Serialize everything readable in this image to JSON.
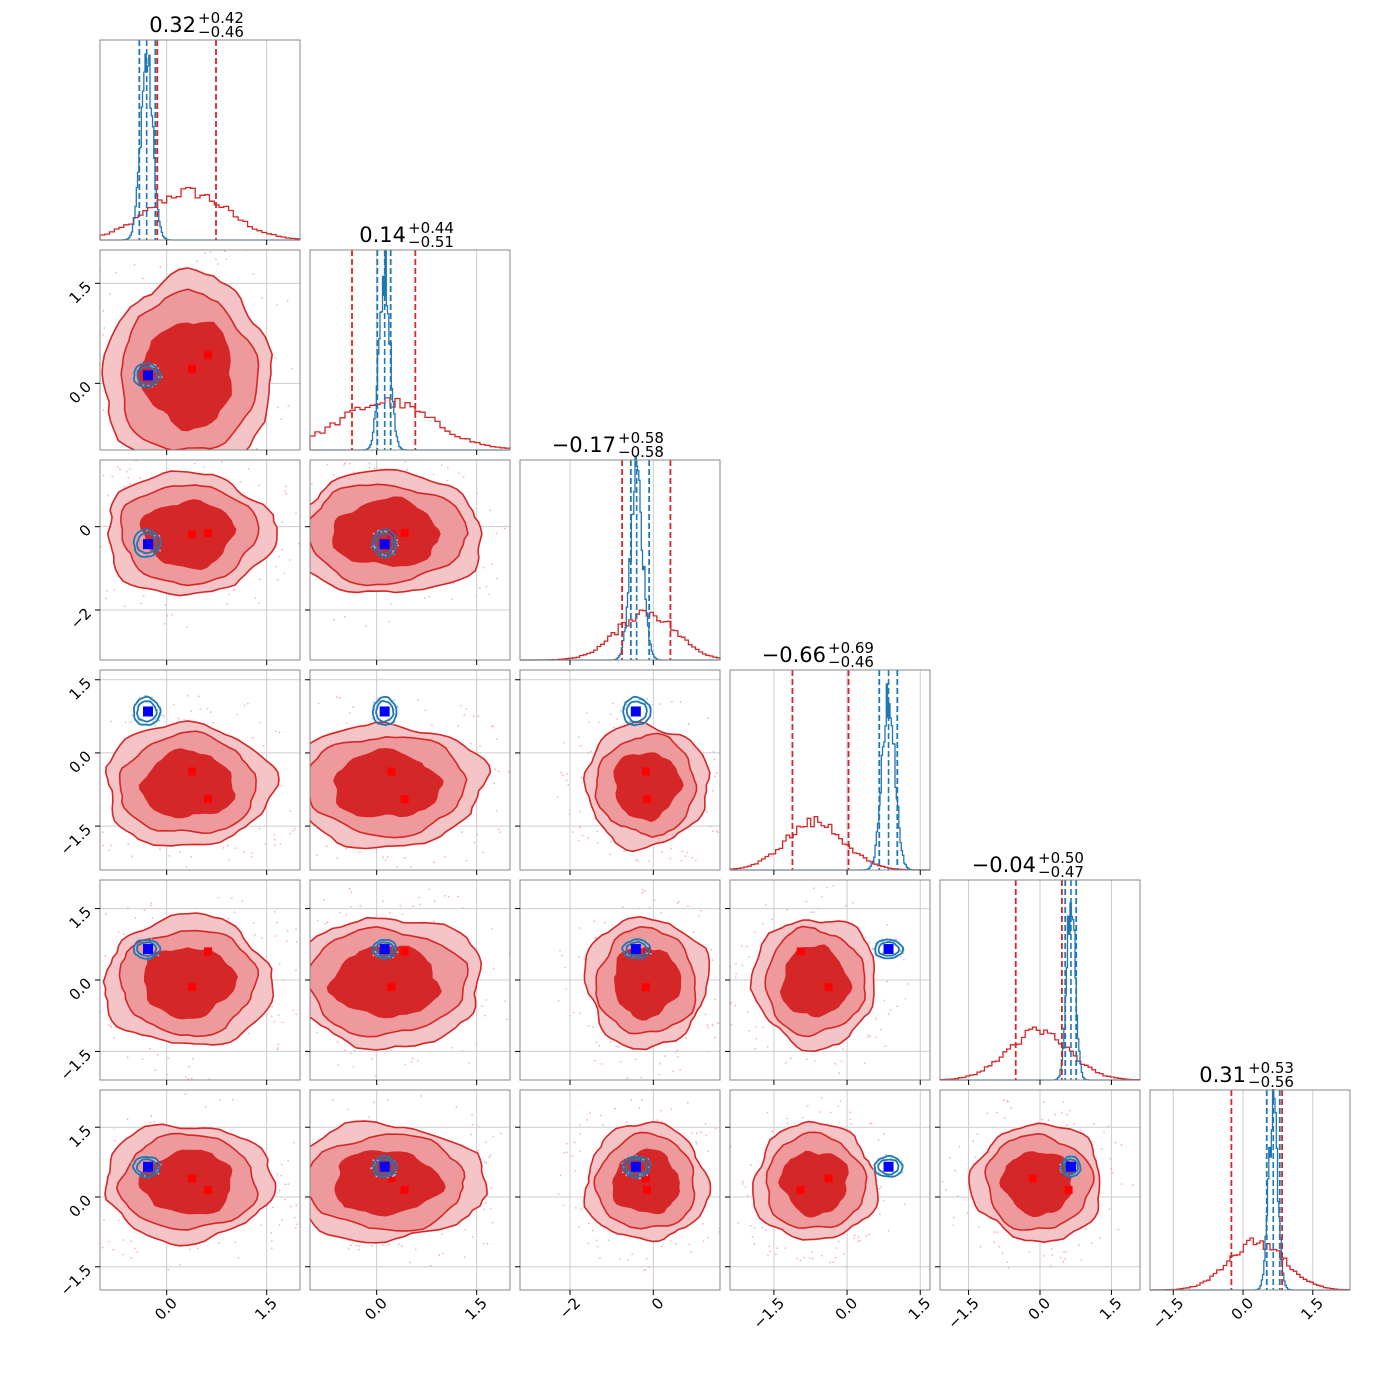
{
  "chart_data": {
    "type": "corner",
    "n_params": 6,
    "grid": true,
    "colors": {
      "red_series": "#d62728",
      "red_fill_light": "#f4c4c6",
      "red_fill_mid": "#ee9a9c",
      "red_scatter": "#f6b3c0",
      "blue_series": "#1f77b4",
      "blue_scatter": "#9ecae1",
      "truth_marker": "#0000ff",
      "red_marker": "#ff0000",
      "grid": "#cccccc",
      "frame": "#888888"
    },
    "axis_ranges": [
      [
        -1.0,
        2.0
      ],
      [
        -1.0,
        2.0
      ],
      [
        -3.2,
        1.6
      ],
      [
        -2.4,
        1.7
      ],
      [
        -2.1,
        2.1
      ],
      [
        -2.0,
        2.3
      ]
    ],
    "ticks": [
      {
        "values": [
          0.0,
          1.5
        ],
        "labels": [
          "0.0",
          "1.5"
        ]
      },
      {
        "values": [
          0.0,
          1.5
        ],
        "labels": [
          "0.0",
          "1.5"
        ]
      },
      {
        "values": [
          -2,
          0
        ],
        "labels": [
          "−2",
          "0"
        ]
      },
      {
        "values": [
          -1.5,
          0.0,
          1.5
        ],
        "labels": [
          "−1.5",
          "0.0",
          "1.5"
        ]
      },
      {
        "values": [
          -1.5,
          0.0,
          1.5
        ],
        "labels": [
          "−1.5",
          "0.0",
          "1.5"
        ]
      },
      {
        "values": [
          -1.5,
          0.0,
          1.5
        ],
        "labels": [
          "−1.5",
          "0.0",
          "1.5"
        ]
      }
    ],
    "titles": [
      {
        "median": "0.32",
        "plus": "+0.42",
        "minus": "−0.46"
      },
      {
        "median": "0.14",
        "plus": "+0.44",
        "minus": "−0.51"
      },
      {
        "median": "−0.17",
        "plus": "+0.58",
        "minus": "−0.58"
      },
      {
        "median": "−0.66",
        "plus": "+0.69",
        "minus": "−0.46"
      },
      {
        "median": "−0.04",
        "plus": "+0.50",
        "minus": "−0.47"
      },
      {
        "median": "0.31",
        "plus": "+0.53",
        "minus": "−0.56"
      }
    ],
    "red_series": {
      "means": [
        0.32,
        0.14,
        -0.17,
        -0.66,
        -0.04,
        0.31
      ],
      "sigmas": [
        0.6,
        0.7,
        0.7,
        0.6,
        0.65,
        0.6
      ],
      "quantiles": [
        [
          -0.14,
          0.74
        ],
        [
          -0.37,
          0.58
        ],
        [
          -0.75,
          0.41
        ],
        [
          -1.12,
          0.03
        ],
        [
          -0.51,
          0.46
        ],
        [
          -0.25,
          0.84
        ]
      ],
      "markers_primary": [
        0.62,
        0.42,
        -0.15,
        -0.95,
        0.6,
        0.15
      ],
      "markers_secondary": [
        0.38,
        0.22,
        -0.18,
        -0.38,
        -0.15,
        0.4
      ]
    },
    "blue_series": {
      "means": [
        -0.3,
        0.12,
        -0.4,
        0.85,
        0.65,
        0.65
      ],
      "sigmas": [
        0.09,
        0.08,
        0.15,
        0.13,
        0.09,
        0.1
      ],
      "quantiles": [
        [
          -0.41,
          -0.17
        ],
        [
          0.01,
          0.21
        ],
        [
          -0.54,
          -0.1
        ],
        [
          0.66,
          1.03
        ],
        [
          0.53,
          0.76
        ],
        [
          0.51,
          0.79
        ]
      ]
    },
    "truth": [
      -0.28,
      0.12,
      -0.42,
      0.85,
      0.65,
      0.65
    ]
  }
}
